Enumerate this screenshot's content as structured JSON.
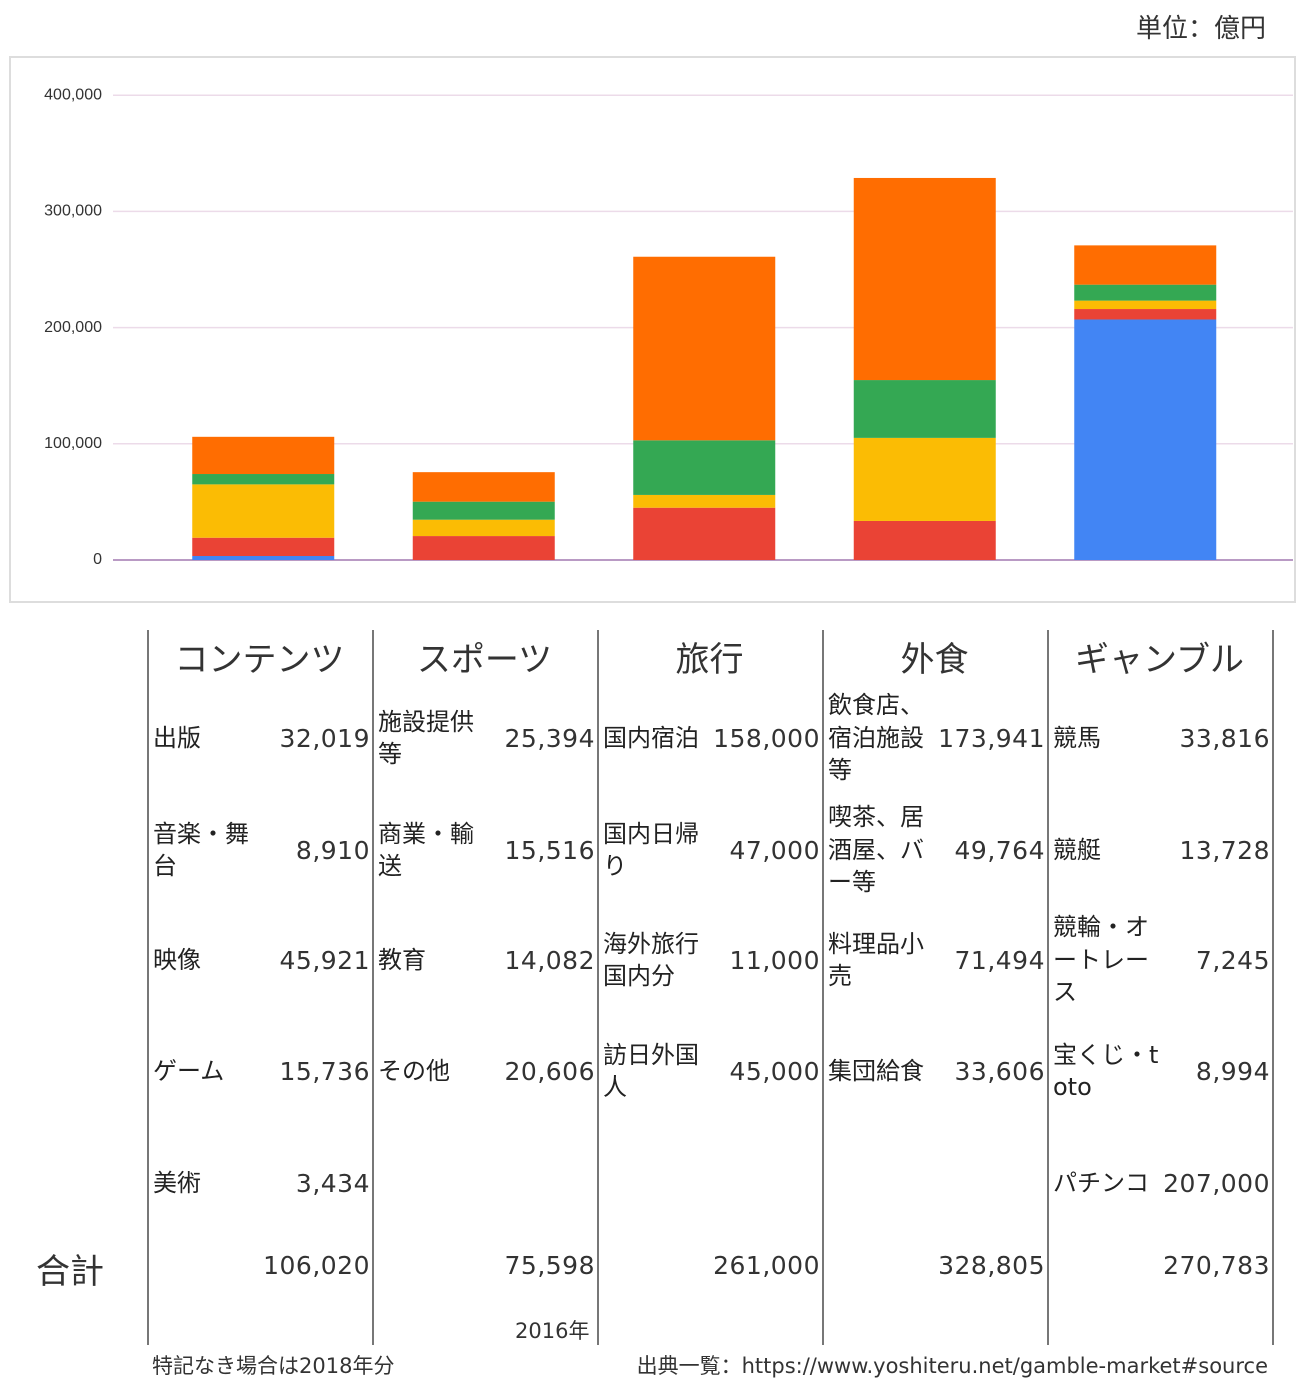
{
  "chart_data": {
    "type": "stacked_bar",
    "unit": "単位：億円",
    "categories": [
      "コンテンツ",
      "スポーツ",
      "旅行",
      "外食",
      "ギャンブル"
    ],
    "series": [
      {
        "color": "#ff6d01",
        "values": [
          32019,
          25394,
          158000,
          173941,
          33816
        ],
        "value_labels": [
          "32,019",
          "25,394",
          "158,000",
          "173,941",
          "33,816"
        ],
        "item_labels": [
          "出版",
          "施設提供等",
          "国内宿泊",
          "飲食店、宿泊施設等",
          "競馬"
        ]
      },
      {
        "color": "#34a853",
        "values": [
          8910,
          15516,
          47000,
          49764,
          13728
        ],
        "value_labels": [
          "8,910",
          "15,516",
          "47,000",
          "49,764",
          "13,728"
        ],
        "item_labels": [
          "音楽・舞台",
          "商業・輸送",
          "国内日帰り",
          "喫茶、居酒屋、バー等",
          "競艇"
        ]
      },
      {
        "color": "#fbbc04",
        "values": [
          45921,
          14082,
          11000,
          71494,
          7245
        ],
        "value_labels": [
          "45,921",
          "14,082",
          "11,000",
          "71,494",
          "7,245"
        ],
        "item_labels": [
          "映像",
          "教育",
          "海外旅行国内分",
          "料理品小売",
          "競輪・オートレース"
        ]
      },
      {
        "color": "#ea4335",
        "values": [
          15736,
          20606,
          45000,
          33606,
          8994
        ],
        "value_labels": [
          "15,736",
          "20,606",
          "45,000",
          "33,606",
          "8,994"
        ],
        "item_labels": [
          "ゲーム",
          "その他",
          "訪日外国人",
          "集団給食",
          "宝くじ・toto"
        ]
      },
      {
        "color": "#4285f4",
        "values": [
          3434,
          null,
          null,
          null,
          207000
        ],
        "value_labels": [
          "3,434",
          null,
          null,
          null,
          "207,000"
        ],
        "item_labels": [
          "美術",
          null,
          null,
          null,
          "パチンコ"
        ]
      }
    ],
    "ylim": [
      0,
      420000
    ],
    "yticks": [
      0,
      {
        "value": 100000,
        "label": "100,000"
      },
      {
        "value": 200000,
        "label": "200,000"
      },
      {
        "value": 300000,
        "label": "300,000"
      },
      {
        "value": 400000,
        "label": "400,000"
      }
    ],
    "grid": true
  },
  "table": {
    "total_label": "合計",
    "totals": [
      "106,020",
      "75,598",
      "261,000",
      "328,805",
      "270,783"
    ],
    "year_note": "2016年",
    "footnote": "特記なき場合は2018年分",
    "source": "出典一覧：https://www.yoshiteru.net/gamble-market#source"
  }
}
